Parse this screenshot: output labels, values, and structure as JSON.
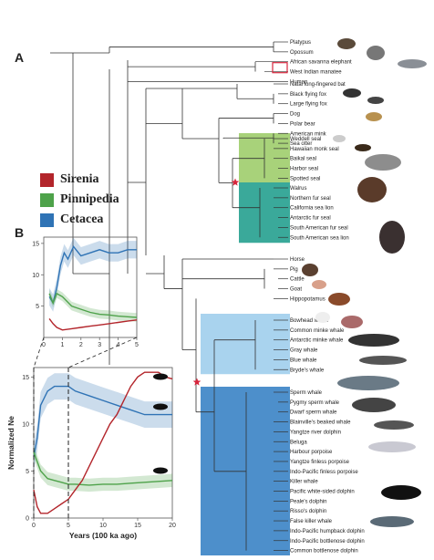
{
  "panels": {
    "a": "A",
    "b": "B"
  },
  "legend": [
    {
      "label": "Sirenia",
      "color": "#b3252b"
    },
    {
      "label": "Pinnipedia",
      "color": "#4ea24a"
    },
    {
      "label": "Cetacea",
      "color": "#2f73b5"
    }
  ],
  "tree": {
    "leaves": [
      "Platypus",
      "Opossum",
      "African savanna elephant",
      "West Indian manatee",
      "Human",
      "Natal long-fingered bat",
      "Black flying fox",
      "Large flying fox",
      "Dog",
      "Polar bear",
      "American mink",
      "Sea otter",
      "Weddell seal",
      "Hawaiian monk seal",
      "Baikal seal",
      "Harbor seal",
      "Spotted seal",
      "Walrus",
      "Northern fur seal",
      "California sea lion",
      "Antarctic fur seal",
      "South American fur seal",
      "South American sea lion",
      "Horse",
      "Pig",
      "Cattle",
      "Goat",
      "Hippopotamus",
      "Bowhead whale",
      "Common minke whale",
      "Antarctic minke whale",
      "Gray whale",
      "Blue whale",
      "Bryde's whale",
      "Sperm whale",
      "Pygmy sperm whale",
      "Dwarf sperm whale",
      "Blainville's beaked whale",
      "Yangtze river dolphin",
      "Beluga",
      "Harbour porpoise",
      "Yangtze finless porpoise",
      "Indo-Pacific finless porpoise",
      "Killer whale",
      "Pacific white-sided dolphin",
      "Peale's dolphin",
      "Risso's dolphin",
      "False killer whale",
      "Indo-Pacific humpback dolphin",
      "Indo-Pacific bottlenose dolphin",
      "Common bottlenose dolphin"
    ],
    "clade_colors": {
      "pinnipedia_light": "#a8d27a",
      "pinnipedia_mid": "#6dba4b",
      "pinnipedia_dark": "#3aa99a",
      "cetacea_light": "#a9d3ee",
      "cetacea_dark": "#4d8fcb"
    }
  },
  "chart_data": [
    {
      "type": "line",
      "title": "",
      "xlabel": "",
      "ylabel": "",
      "xlim": [
        0,
        5
      ],
      "ylim": [
        0,
        16
      ],
      "xticks": [
        "0",
        "1",
        "2",
        "3",
        "4",
        "5"
      ],
      "yticks": [
        "5",
        "10",
        "15"
      ],
      "series": [
        {
          "color": "#2f73b5",
          "x": [
            0.3,
            0.5,
            0.7,
            0.9,
            1.1,
            1.3,
            1.6,
            2.0,
            2.5,
            3.0,
            3.5,
            4.0,
            4.5,
            5.0
          ],
          "y": [
            6.5,
            5.5,
            8.0,
            11.5,
            13.5,
            12.5,
            14.5,
            13.0,
            13.5,
            14.0,
            13.5,
            13.5,
            14.0,
            14.0
          ]
        },
        {
          "color": "#4ea24a",
          "x": [
            0.3,
            0.5,
            0.7,
            1.0,
            1.5,
            2.0,
            2.5,
            3.0,
            3.5,
            4.0,
            4.5,
            5.0
          ],
          "y": [
            7.0,
            5.5,
            7.0,
            6.5,
            5.0,
            4.5,
            4.0,
            3.7,
            3.6,
            3.4,
            3.3,
            3.2
          ]
        },
        {
          "color": "#b3252b",
          "x": [
            0.3,
            0.5,
            0.7,
            1.0,
            1.5,
            2.0,
            2.5,
            3.0,
            3.5,
            4.0,
            4.5,
            5.0
          ],
          "y": [
            3.0,
            2.2,
            1.6,
            1.2,
            1.4,
            1.6,
            1.8,
            2.0,
            2.2,
            2.4,
            2.6,
            2.8
          ]
        }
      ]
    },
    {
      "type": "line",
      "title": "",
      "xlabel": "Years (100 ka ago)",
      "ylabel": "Normalized Ne",
      "xlim": [
        0,
        20
      ],
      "ylim": [
        0,
        16
      ],
      "xticks": [
        "0",
        "5",
        "10",
        "15",
        "20"
      ],
      "yticks": [
        "0",
        "5",
        "10",
        "15"
      ],
      "series": [
        {
          "color": "#2f73b5",
          "x": [
            0,
            0.5,
            1,
            2,
            3,
            4,
            5,
            6,
            8,
            10,
            12,
            14,
            16,
            18,
            20
          ],
          "y": [
            6.5,
            8.5,
            12,
            13.5,
            14,
            14,
            14,
            13.5,
            13,
            12.5,
            12,
            11.5,
            11,
            11,
            11
          ]
        },
        {
          "color": "#4ea24a",
          "x": [
            0,
            0.5,
            1,
            2,
            3,
            4,
            5,
            6,
            8,
            10,
            12,
            14,
            16,
            18,
            20
          ],
          "y": [
            7,
            6,
            5,
            4.2,
            4,
            3.8,
            3.6,
            3.6,
            3.5,
            3.6,
            3.6,
            3.7,
            3.8,
            3.9,
            4
          ]
        },
        {
          "color": "#b3252b",
          "x": [
            0,
            0.5,
            1,
            2,
            3,
            4,
            5,
            6,
            7,
            8,
            9,
            10,
            11,
            12,
            13,
            14,
            15,
            16,
            17,
            18,
            19,
            20
          ],
          "y": [
            3,
            1.2,
            0.5,
            0.5,
            1,
            1.5,
            2,
            3,
            4,
            5.5,
            7,
            8.5,
            10,
            11,
            12.5,
            14,
            15,
            15.5,
            15.5,
            15.5,
            15,
            14.8
          ]
        }
      ]
    }
  ]
}
